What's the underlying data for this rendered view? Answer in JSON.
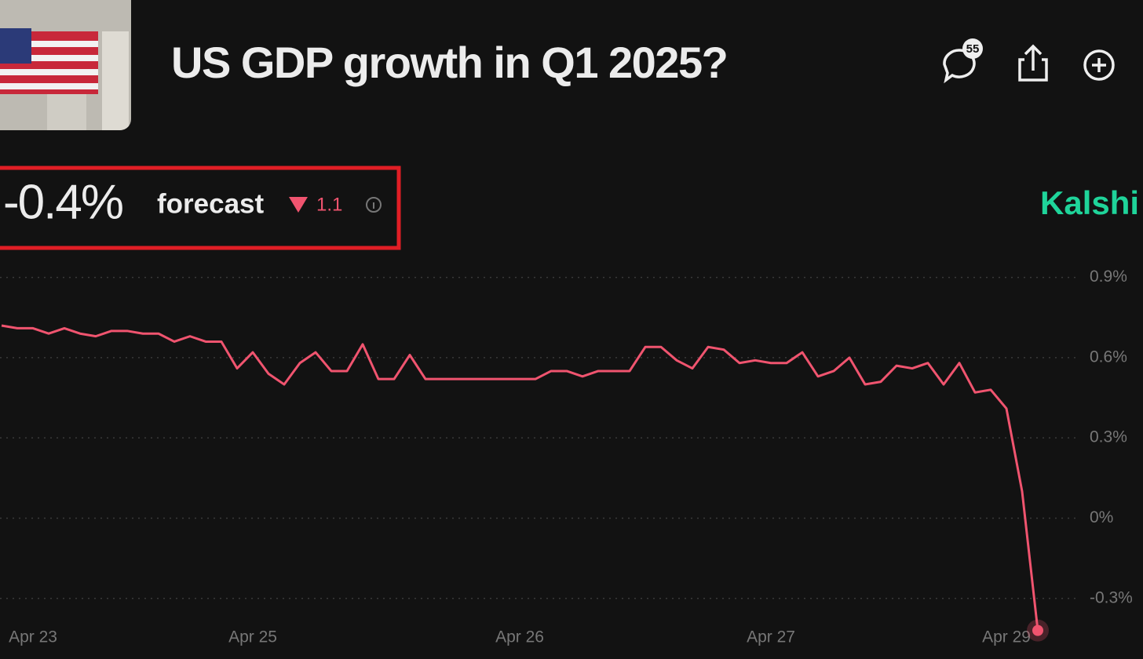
{
  "header": {
    "title": "US GDP growth in Q1 2025?",
    "comments": "55",
    "forecast_value": "-0.4%",
    "forecast_label": "forecast",
    "change": "1.1",
    "source": "Kalshi"
  },
  "chart_data": {
    "type": "line",
    "categories": [
      null,
      null,
      "Apr 23",
      null,
      null,
      null,
      null,
      null,
      null,
      null,
      null,
      null,
      null,
      null,
      null,
      null,
      "Apr 25",
      null,
      null,
      null,
      null,
      null,
      null,
      null,
      null,
      null,
      null,
      null,
      null,
      null,
      null,
      null,
      null,
      "Apr 26",
      null,
      null,
      null,
      null,
      null,
      null,
      null,
      null,
      null,
      null,
      null,
      null,
      null,
      null,
      null,
      "Apr 27",
      null,
      null,
      null,
      null,
      null,
      null,
      null,
      null,
      null,
      null,
      null,
      null,
      null,
      null,
      "Apr 29",
      null,
      null
    ],
    "series": [
      {
        "name": "Forecast",
        "color": "#f0546f",
        "values": [
          0.72,
          0.71,
          0.71,
          0.69,
          0.71,
          0.69,
          0.68,
          0.7,
          0.7,
          0.69,
          0.69,
          0.66,
          0.68,
          0.66,
          0.66,
          0.56,
          0.62,
          0.54,
          0.5,
          0.58,
          0.62,
          0.55,
          0.55,
          0.65,
          0.52,
          0.52,
          0.61,
          0.52,
          0.52,
          0.52,
          0.52,
          0.52,
          0.52,
          0.52,
          0.52,
          0.55,
          0.55,
          0.53,
          0.55,
          0.55,
          0.55,
          0.64,
          0.64,
          0.59,
          0.56,
          0.64,
          0.63,
          0.58,
          0.59,
          0.58,
          0.58,
          0.62,
          0.53,
          0.55,
          0.6,
          0.5,
          0.51,
          0.57,
          0.56,
          0.58,
          0.5,
          0.58,
          0.47,
          0.48,
          0.41,
          0.1,
          -0.42
        ]
      }
    ],
    "ylim": [
      -0.38,
      0.94
    ],
    "yticks": [
      {
        "value": 0.9,
        "label": "0.9%"
      },
      {
        "value": 0.6,
        "label": "0.6%"
      },
      {
        "value": 0.3,
        "label": "0.3%"
      },
      {
        "value": 0,
        "label": "0%"
      },
      {
        "value": -0.3,
        "label": "-0.3%"
      }
    ],
    "grid": true
  }
}
